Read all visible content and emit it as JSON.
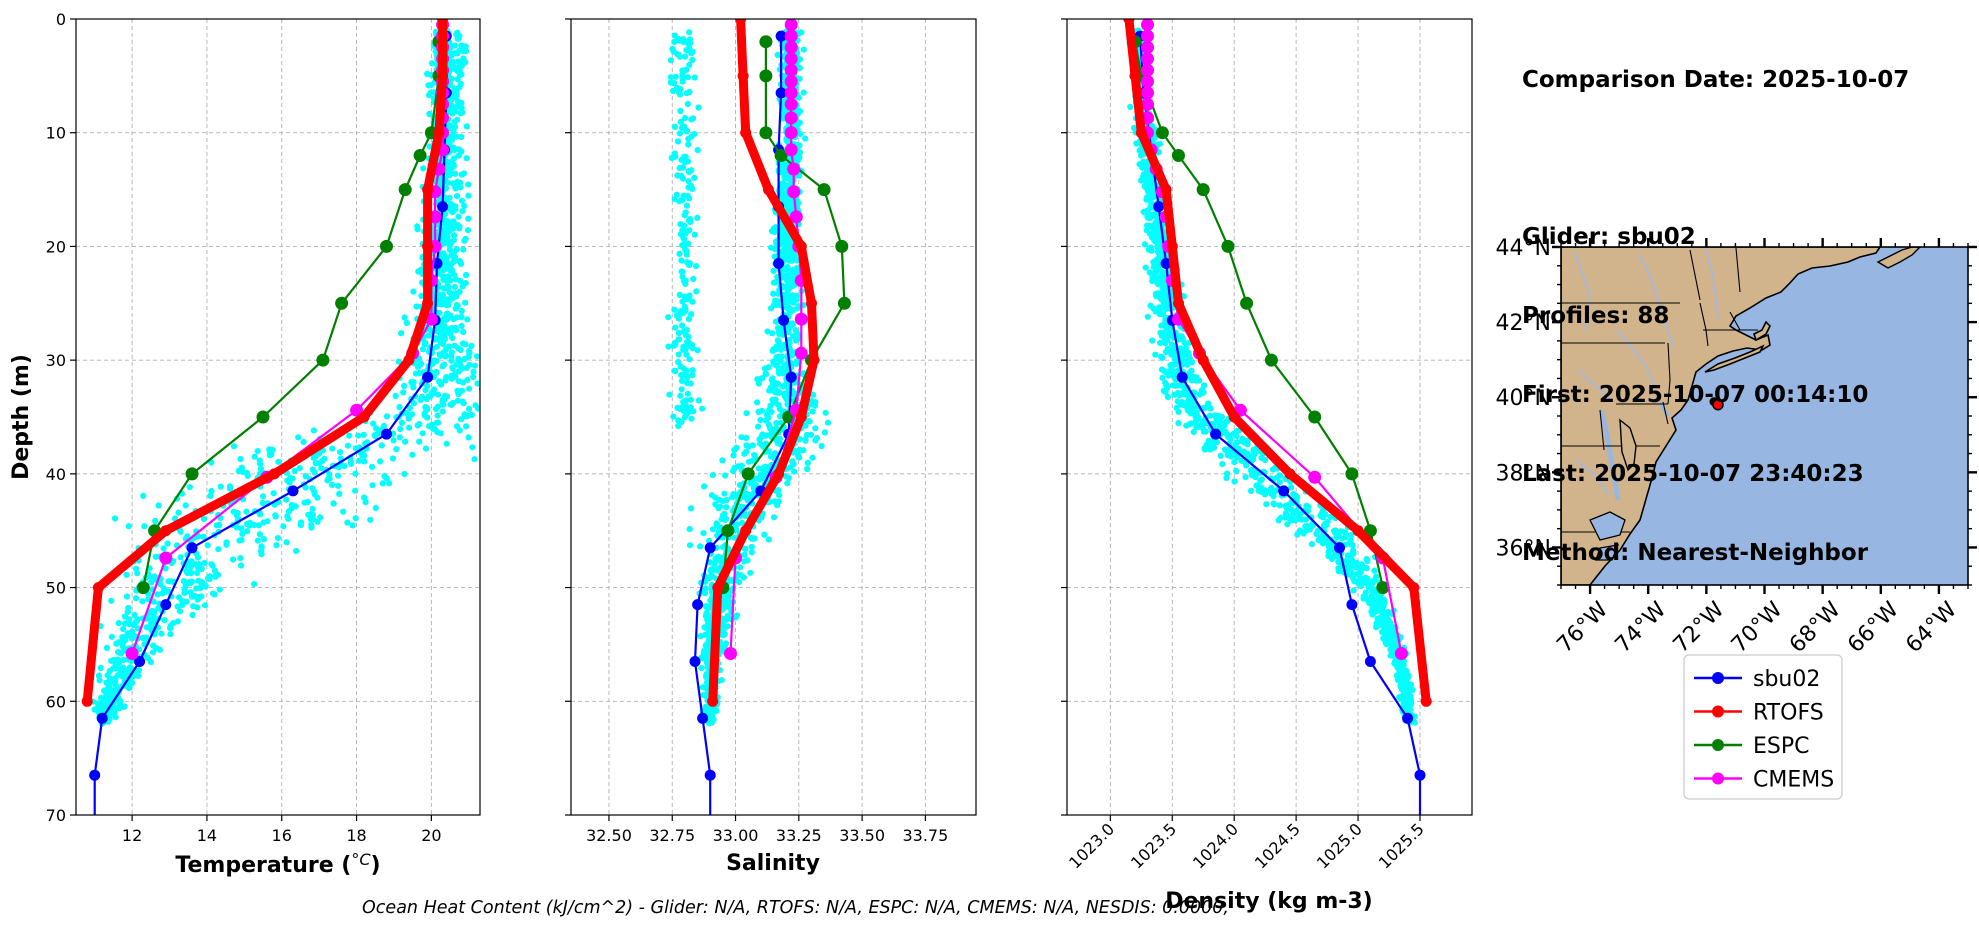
{
  "summary": {
    "date_line": "Comparison Date: 2025-10-07",
    "glider_line": "Glider: sbu02",
    "profiles_line": "Profiles: 88",
    "first_line": "First: 2025-10-07 00:14:10",
    "last_line": "Last: 2025-10-07 23:40:23",
    "method_line": "Method: Nearest-Neighbor"
  },
  "footer": {
    "ohc_text": "Ocean Heat Content (kJ/cm^2) - Glider: N/A,  RTOFS: N/A,  ESPC: N/A,  CMEMS: N/A,  NESDIS: 0.0000,"
  },
  "colors": {
    "sbu02": "#0000ff",
    "RTOFS": "#ff0000",
    "ESPC": "#008000",
    "CMEMS": "#ff00ff",
    "glider_obs": "#00ffff",
    "land": "#d2b48c",
    "ocean": "#97b6e1",
    "grid": "#b0b0b0"
  },
  "legend": {
    "entries": [
      {
        "label": "sbu02",
        "series": "sbu02"
      },
      {
        "label": "RTOFS",
        "series": "RTOFS"
      },
      {
        "label": "ESPC",
        "series": "ESPC"
      },
      {
        "label": "CMEMS",
        "series": "CMEMS"
      }
    ]
  },
  "chart_data": [
    {
      "type": "line",
      "id": "temperature",
      "xlabel": "Temperature (°C)",
      "xlabel_main": "Temperature (",
      "xlabel_sym": "°C",
      "xlabel_end": ")",
      "ylabel": "Depth (m)",
      "xlim": [
        10.5,
        21.3
      ],
      "ylim": [
        70,
        0
      ],
      "xticks": [
        12,
        14,
        16,
        18,
        20
      ],
      "xtick_labels": [
        "12",
        "14",
        "16",
        "18",
        "20"
      ],
      "yticks": [
        0,
        10,
        20,
        30,
        40,
        50,
        60,
        70
      ],
      "ytick_labels": [
        "0",
        "10",
        "20",
        "30",
        "40",
        "50",
        "60",
        "70"
      ],
      "grid": true,
      "scatter_profile": [
        [
          0,
          20.4
        ],
        [
          10,
          20.4
        ],
        [
          20,
          20.3
        ],
        [
          28,
          20.2
        ],
        [
          33,
          20.2
        ],
        [
          36,
          19.6
        ],
        [
          38,
          17.5
        ],
        [
          41,
          16.2
        ],
        [
          44,
          15.2
        ],
        [
          47,
          14.0
        ],
        [
          50,
          13.2
        ],
        [
          53,
          12.4
        ],
        [
          56,
          11.9
        ],
        [
          60,
          11.4
        ],
        [
          62,
          11.2
        ]
      ],
      "scatter_spread": [
        [
          0,
          0.45
        ],
        [
          10,
          0.45
        ],
        [
          25,
          0.6
        ],
        [
          33,
          1.3
        ],
        [
          38,
          2.6
        ],
        [
          43,
          2.6
        ],
        [
          48,
          1.6
        ],
        [
          53,
          1.0
        ],
        [
          58,
          0.5
        ],
        [
          62,
          0.3
        ]
      ],
      "series": [
        {
          "name": "sbu02",
          "depth": [
            1.5,
            6.5,
            11.5,
            16.5,
            21.5,
            26.5,
            31.5,
            36.5,
            41.5,
            46.5,
            51.5,
            56.5,
            61.5,
            66.5,
            70
          ],
          "values": [
            20.4,
            20.4,
            20.35,
            20.3,
            20.15,
            20.1,
            19.9,
            18.8,
            16.3,
            13.6,
            12.9,
            12.2,
            11.2,
            11.0,
            11.0
          ]
        },
        {
          "name": "RTOFS",
          "depth": [
            0,
            5,
            10,
            15,
            20,
            25,
            30,
            35,
            40,
            45,
            50,
            60
          ],
          "values": [
            20.3,
            20.3,
            20.2,
            19.9,
            19.9,
            19.9,
            19.4,
            18.2,
            15.8,
            12.9,
            11.1,
            10.8
          ]
        },
        {
          "name": "ESPC",
          "depth": [
            2,
            5,
            10,
            12,
            15,
            20,
            25,
            30,
            35,
            40,
            45,
            50
          ],
          "values": [
            20.2,
            20.2,
            20.0,
            19.7,
            19.3,
            18.8,
            17.6,
            17.1,
            15.5,
            13.6,
            12.6,
            12.3
          ]
        },
        {
          "name": "CMEMS",
          "depth": [
            0.5,
            1.5,
            2.5,
            3.5,
            4.5,
            5.5,
            6.5,
            7.5,
            8.7,
            10.0,
            11.5,
            13.2,
            15.2,
            17.4,
            20.0,
            23.0,
            26.4,
            29.4,
            34.4,
            40.3,
            47.4,
            55.8
          ],
          "values": [
            20.3,
            20.3,
            20.3,
            20.3,
            20.3,
            20.3,
            20.3,
            20.3,
            20.3,
            20.3,
            20.3,
            20.2,
            20.1,
            20.1,
            20.1,
            20.0,
            20.0,
            19.5,
            18.0,
            15.6,
            12.9,
            12.0
          ]
        }
      ]
    },
    {
      "type": "line",
      "id": "salinity",
      "xlabel": "Salinity",
      "ylabel": "Depth (m)",
      "xlim": [
        32.35,
        33.95
      ],
      "ylim": [
        70,
        0
      ],
      "xticks": [
        32.5,
        32.75,
        33.0,
        33.25,
        33.5,
        33.75
      ],
      "xtick_labels": [
        "32.50",
        "32.75",
        "33.00",
        "33.25",
        "33.50",
        "33.75"
      ],
      "yticks": [
        0,
        10,
        20,
        30,
        40,
        50,
        60,
        70
      ],
      "grid": true,
      "scatter_profile": [
        [
          1,
          33.22
        ],
        [
          10,
          33.22
        ],
        [
          20,
          33.2
        ],
        [
          28,
          33.2
        ],
        [
          33,
          33.2
        ],
        [
          36,
          33.2
        ],
        [
          40,
          33.1
        ],
        [
          44,
          33.0
        ],
        [
          48,
          32.95
        ],
        [
          52,
          32.93
        ],
        [
          58,
          32.9
        ],
        [
          62,
          32.9
        ]
      ],
      "scatter_spread": [
        [
          1,
          0.04
        ],
        [
          10,
          0.04
        ],
        [
          20,
          0.05
        ],
        [
          30,
          0.07
        ],
        [
          35,
          0.14
        ],
        [
          40,
          0.16
        ],
        [
          45,
          0.12
        ],
        [
          50,
          0.08
        ],
        [
          55,
          0.04
        ],
        [
          62,
          0.02
        ]
      ],
      "scatter_branch": {
        "depth_range": [
          1,
          36
        ],
        "center": 32.8,
        "spread": 0.05
      },
      "series": [
        {
          "name": "sbu02",
          "depth": [
            1.5,
            6.5,
            11.5,
            16.5,
            21.5,
            26.5,
            31.5,
            36.5,
            41.5,
            46.5,
            51.5,
            56.5,
            61.5,
            66.5,
            70
          ],
          "values": [
            33.18,
            33.18,
            33.17,
            33.17,
            33.17,
            33.19,
            33.22,
            33.21,
            33.1,
            32.9,
            32.85,
            32.84,
            32.87,
            32.9,
            32.9
          ]
        },
        {
          "name": "RTOFS",
          "depth": [
            0,
            5,
            10,
            15,
            20,
            25,
            30,
            35,
            40,
            45,
            50,
            60
          ],
          "values": [
            33.02,
            33.03,
            33.04,
            33.13,
            33.26,
            33.3,
            33.31,
            33.26,
            33.17,
            33.04,
            32.93,
            32.91
          ]
        },
        {
          "name": "ESPC",
          "depth": [
            2,
            5,
            10,
            12,
            15,
            20,
            25,
            30,
            35,
            40,
            45,
            50
          ],
          "values": [
            33.12,
            33.12,
            33.12,
            33.18,
            33.35,
            33.42,
            33.43,
            33.3,
            33.21,
            33.05,
            32.97,
            32.95
          ]
        },
        {
          "name": "CMEMS",
          "depth": [
            0.5,
            1.5,
            2.5,
            3.5,
            4.5,
            5.5,
            6.5,
            7.5,
            8.7,
            10.0,
            11.5,
            13.2,
            15.2,
            17.4,
            20.0,
            23.0,
            26.4,
            29.4,
            34.4,
            40.3,
            47.4,
            55.8
          ],
          "values": [
            33.22,
            33.22,
            33.22,
            33.22,
            33.22,
            33.22,
            33.22,
            33.22,
            33.22,
            33.22,
            33.22,
            33.23,
            33.23,
            33.24,
            33.25,
            33.26,
            33.26,
            33.26,
            33.24,
            33.16,
            33.0,
            32.98
          ]
        }
      ]
    },
    {
      "type": "line",
      "id": "density",
      "xlabel": "Density (kg m-3)",
      "ylabel": "Depth (m)",
      "xlim": [
        1022.65,
        1025.92
      ],
      "ylim": [
        70,
        0
      ],
      "xticks": [
        1023.0,
        1023.5,
        1024.0,
        1024.5,
        1025.0,
        1025.5
      ],
      "xtick_labels": [
        "1023.0",
        "1023.5",
        "1024.0",
        "1024.5",
        "1025.0",
        "1025.5"
      ],
      "yticks": [
        0,
        10,
        20,
        30,
        40,
        50,
        60,
        70
      ],
      "grid": true,
      "scatter_profile": [
        [
          1,
          1023.2
        ],
        [
          10,
          1023.3
        ],
        [
          20,
          1023.4
        ],
        [
          28,
          1023.5
        ],
        [
          33,
          1023.6
        ],
        [
          37,
          1023.9
        ],
        [
          41,
          1024.3
        ],
        [
          45,
          1024.7
        ],
        [
          50,
          1025.1
        ],
        [
          55,
          1025.3
        ],
        [
          60,
          1025.4
        ],
        [
          65,
          1025.45
        ]
      ],
      "scatter_spread": [
        [
          1,
          0.06
        ],
        [
          10,
          0.08
        ],
        [
          20,
          0.1
        ],
        [
          30,
          0.15
        ],
        [
          35,
          0.22
        ],
        [
          40,
          0.28
        ],
        [
          45,
          0.22
        ],
        [
          50,
          0.1
        ],
        [
          58,
          0.05
        ],
        [
          65,
          0.03
        ]
      ],
      "series": [
        {
          "name": "sbu02",
          "depth": [
            1.5,
            6.5,
            11.5,
            16.5,
            21.5,
            26.5,
            31.5,
            36.5,
            41.5,
            46.5,
            51.5,
            56.5,
            61.5,
            66.5,
            70
          ],
          "values": [
            1023.24,
            1023.27,
            1023.33,
            1023.39,
            1023.45,
            1023.5,
            1023.58,
            1023.85,
            1024.4,
            1024.85,
            1024.95,
            1025.1,
            1025.4,
            1025.5,
            1025.5
          ]
        },
        {
          "name": "RTOFS",
          "depth": [
            0,
            5,
            10,
            15,
            20,
            25,
            30,
            35,
            40,
            45,
            50,
            60
          ],
          "values": [
            1023.15,
            1023.2,
            1023.25,
            1023.45,
            1023.5,
            1023.55,
            1023.75,
            1024.0,
            1024.45,
            1025.0,
            1025.45,
            1025.55
          ]
        },
        {
          "name": "ESPC",
          "depth": [
            2,
            5,
            10,
            12,
            15,
            20,
            25,
            30,
            35,
            40,
            45,
            50
          ],
          "values": [
            1023.2,
            1023.25,
            1023.42,
            1023.55,
            1023.75,
            1023.95,
            1024.1,
            1024.3,
            1024.65,
            1024.95,
            1025.1,
            1025.2
          ]
        },
        {
          "name": "CMEMS",
          "depth": [
            0.5,
            1.5,
            2.5,
            3.5,
            4.5,
            5.5,
            6.5,
            7.5,
            8.7,
            10.0,
            11.5,
            13.2,
            15.2,
            17.4,
            20.0,
            23.0,
            26.4,
            29.4,
            34.4,
            40.3,
            47.4,
            55.8
          ],
          "values": [
            1023.3,
            1023.3,
            1023.3,
            1023.3,
            1023.3,
            1023.3,
            1023.3,
            1023.3,
            1023.3,
            1023.3,
            1023.33,
            1023.37,
            1023.42,
            1023.45,
            1023.47,
            1023.5,
            1023.55,
            1023.72,
            1024.05,
            1024.65,
            1025.2,
            1025.35
          ]
        }
      ]
    },
    {
      "type": "map",
      "id": "location-map",
      "lon_range": [
        -77,
        -63
      ],
      "lat_range": [
        35,
        44
      ],
      "xticks": [
        -76,
        -74,
        -72,
        -70,
        -68,
        -66,
        -64
      ],
      "xtick_labels": [
        "76°W",
        "74°W",
        "72°W",
        "70°W",
        "68°W",
        "66°W",
        "64°W"
      ],
      "yticks": [
        36,
        38,
        40,
        42,
        44
      ],
      "ytick_labels": [
        "36°N",
        "38°N",
        "40°N",
        "42°N",
        "44°N"
      ],
      "glider_lon": -71.6,
      "glider_lat": 39.8
    }
  ]
}
